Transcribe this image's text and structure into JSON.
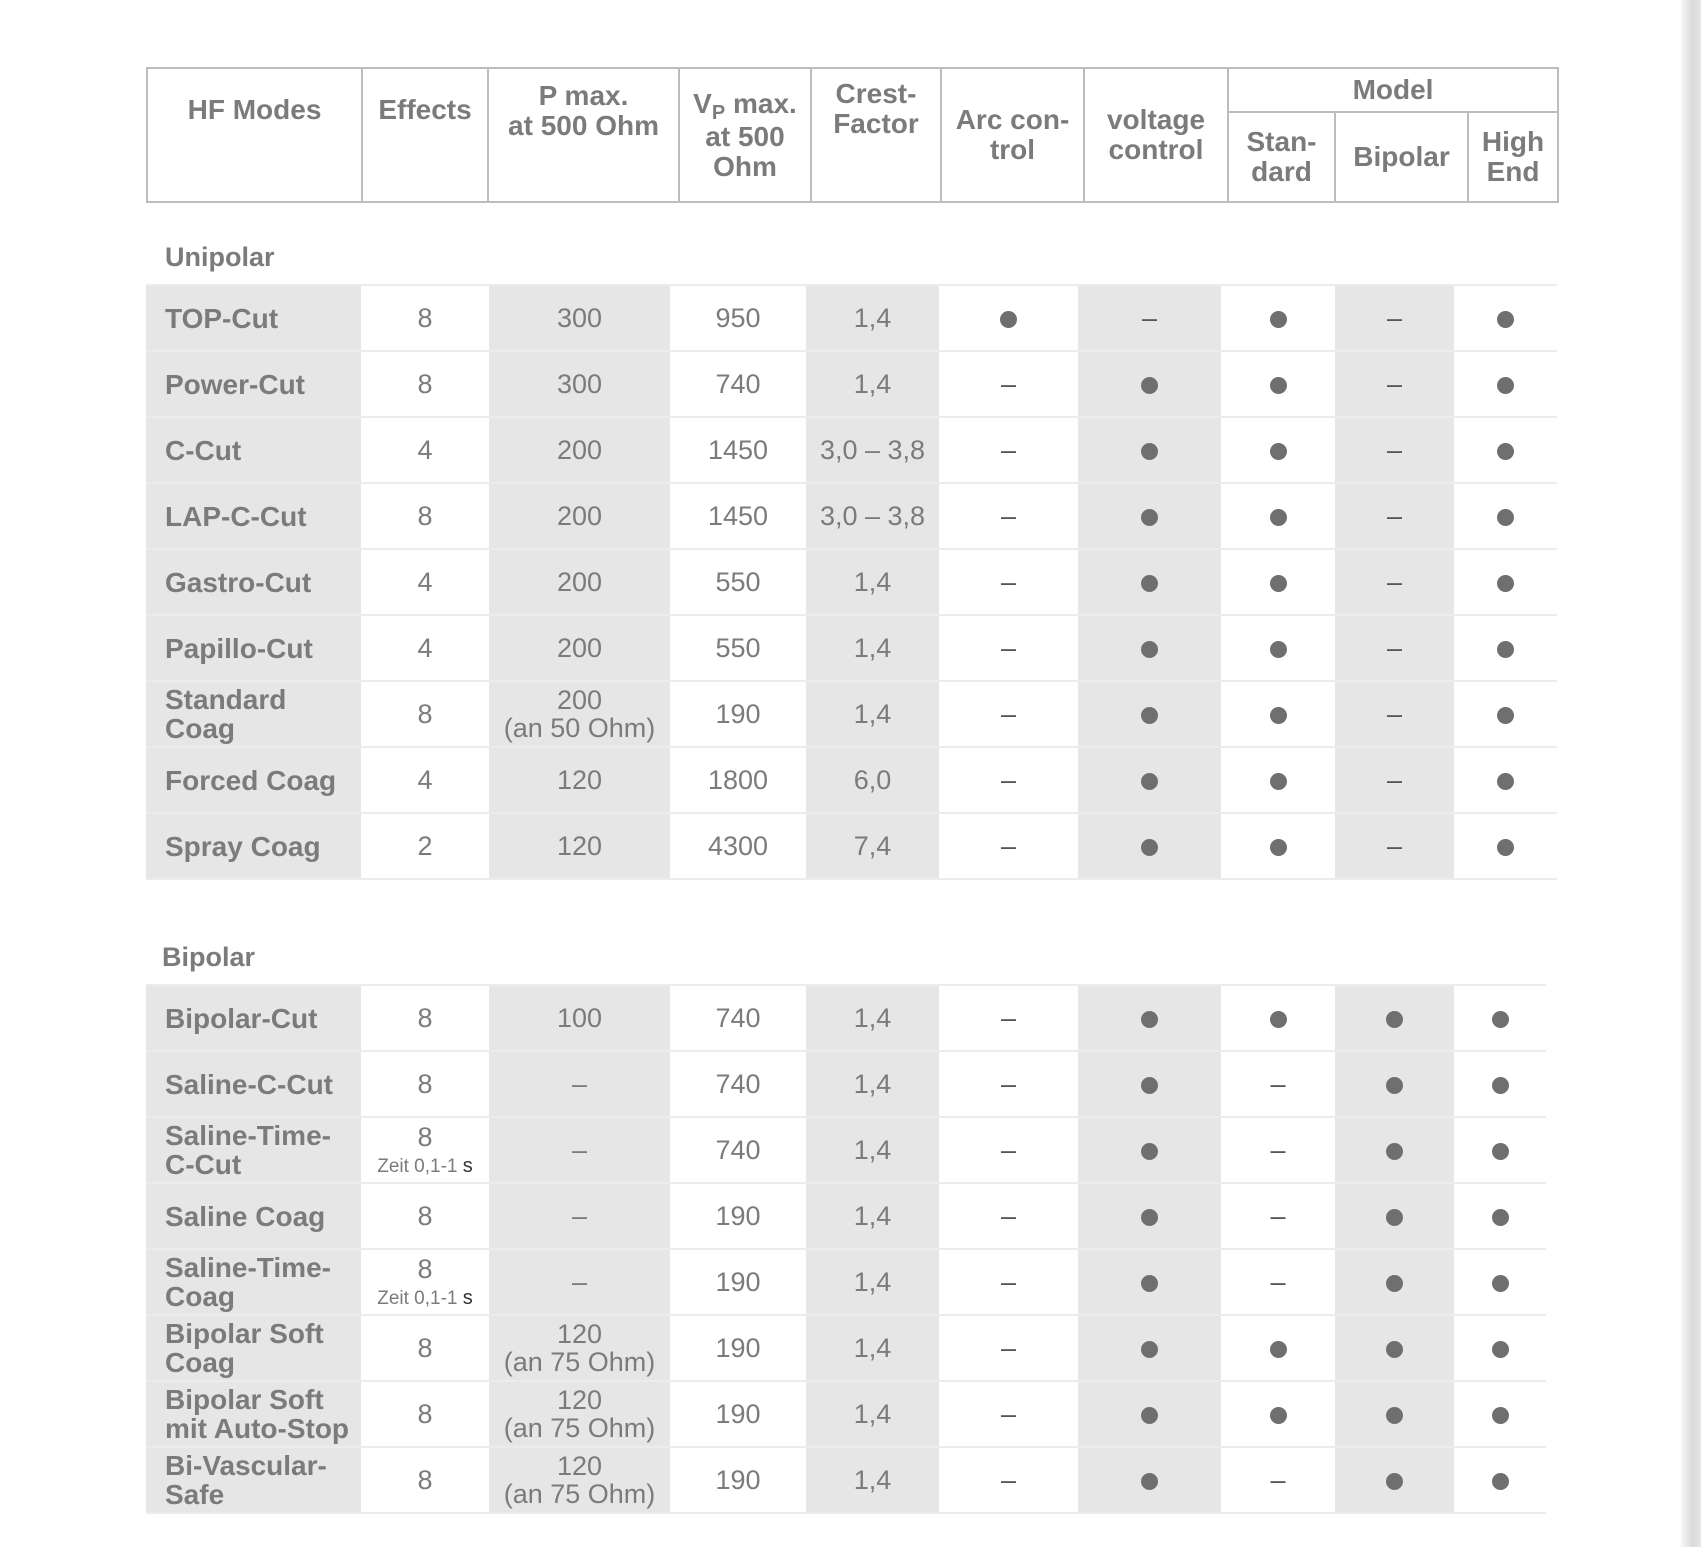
{
  "header": {
    "hf_modes": "HF Modes",
    "effects": "Effects",
    "p_max_l1": "P max.",
    "p_max_l2": "at 500 Ohm",
    "vp_v": "V",
    "vp_sub": "P",
    "vp_l1_rest": " max.",
    "vp_l2": "at 500",
    "vp_l3": "Ohm",
    "crest_l1": "Crest-",
    "crest_l2": "Factor",
    "arc_l1": "Arc con-",
    "arc_l2": "trol",
    "voltage_l1": "voltage",
    "voltage_l2": "control",
    "model": "Model",
    "standard_l1": "Stan-",
    "standard_l2": "dard",
    "bipolar": "Bipolar",
    "highend_l1": "High",
    "highend_l2": "End"
  },
  "sections": {
    "unipolar": {
      "title": "Unipolar",
      "rows": [
        {
          "l1": "TOP-Cut",
          "l2": "",
          "effects": "8",
          "note": "",
          "p1": "300",
          "p2": "",
          "vp": "950",
          "crest": "1,4",
          "arc": "dot",
          "voltage": "dash",
          "standard": "dot",
          "bipolar": "dash",
          "highend": "dot"
        },
        {
          "l1": "Power-Cut",
          "l2": "",
          "effects": "8",
          "note": "",
          "p1": "300",
          "p2": "",
          "vp": "740",
          "crest": "1,4",
          "arc": "dash",
          "voltage": "dot",
          "standard": "dot",
          "bipolar": "dash",
          "highend": "dot"
        },
        {
          "l1": "C-Cut",
          "l2": "",
          "effects": "4",
          "note": "",
          "p1": "200",
          "p2": "",
          "vp": "1450",
          "crest": "3,0 – 3,8",
          "arc": "dash",
          "voltage": "dot",
          "standard": "dot",
          "bipolar": "dash",
          "highend": "dot"
        },
        {
          "l1": "LAP-C-Cut",
          "l2": "",
          "effects": "8",
          "note": "",
          "p1": "200",
          "p2": "",
          "vp": "1450",
          "crest": "3,0 – 3,8",
          "arc": "dash",
          "voltage": "dot",
          "standard": "dot",
          "bipolar": "dash",
          "highend": "dot"
        },
        {
          "l1": "Gastro-Cut",
          "l2": "",
          "effects": "4",
          "note": "",
          "p1": "200",
          "p2": "",
          "vp": "550",
          "crest": "1,4",
          "arc": "dash",
          "voltage": "dot",
          "standard": "dot",
          "bipolar": "dash",
          "highend": "dot"
        },
        {
          "l1": "Papillo-Cut",
          "l2": "",
          "effects": "4",
          "note": "",
          "p1": "200",
          "p2": "",
          "vp": "550",
          "crest": "1,4",
          "arc": "dash",
          "voltage": "dot",
          "standard": "dot",
          "bipolar": "dash",
          "highend": "dot"
        },
        {
          "l1": "Standard",
          "l2": "Coag",
          "effects": "8",
          "note": "",
          "p1": "200",
          "p2": "(an 50 Ohm)",
          "vp": "190",
          "crest": "1,4",
          "arc": "dash",
          "voltage": "dot",
          "standard": "dot",
          "bipolar": "dash",
          "highend": "dot"
        },
        {
          "l1": "Forced Coag",
          "l2": "",
          "effects": "4",
          "note": "",
          "p1": "120",
          "p2": "",
          "vp": "1800",
          "crest": "6,0",
          "arc": "dash",
          "voltage": "dot",
          "standard": "dot",
          "bipolar": "dash",
          "highend": "dot"
        },
        {
          "l1": "Spray Coag",
          "l2": "",
          "effects": "2",
          "note": "",
          "p1": "120",
          "p2": "",
          "vp": "4300",
          "crest": "7,4",
          "arc": "dash",
          "voltage": "dot",
          "standard": "dot",
          "bipolar": "dash",
          "highend": "dot"
        }
      ]
    },
    "bipolar": {
      "title": "Bipolar",
      "rows": [
        {
          "l1": "Bipolar-Cut",
          "l2": "",
          "effects": "8",
          "note": "",
          "p1": "100",
          "p2": "",
          "vp": "740",
          "crest": "1,4",
          "arc": "dash",
          "voltage": "dot",
          "standard": "dot",
          "bipolar": "dot",
          "highend": "dot"
        },
        {
          "l1": "Saline-C-Cut",
          "l2": "",
          "effects": "8",
          "note": "",
          "p1": "–",
          "p2": "",
          "vp": "740",
          "crest": "1,4",
          "arc": "dash",
          "voltage": "dot",
          "standard": "dash",
          "bipolar": "dot",
          "highend": "dot"
        },
        {
          "l1": "Saline-Time-",
          "l2": "C-Cut",
          "effects": "8",
          "note": "Zeit 0,1-1",
          "p1": "–",
          "p2": "",
          "vp": "740",
          "crest": "1,4",
          "arc": "dash",
          "voltage": "dot",
          "standard": "dash",
          "bipolar": "dot",
          "highend": "dot"
        },
        {
          "l1": "Saline Coag",
          "l2": "",
          "effects": "8",
          "note": "",
          "p1": "–",
          "p2": "",
          "vp": "190",
          "crest": "1,4",
          "arc": "dash",
          "voltage": "dot",
          "standard": "dash",
          "bipolar": "dot",
          "highend": "dot"
        },
        {
          "l1": "Saline-Time-",
          "l2": "Coag",
          "effects": "8",
          "note": "Zeit 0,1-1",
          "p1": "–",
          "p2": "",
          "vp": "190",
          "crest": "1,4",
          "arc": "dash",
          "voltage": "dot",
          "standard": "dash",
          "bipolar": "dot",
          "highend": "dot"
        },
        {
          "l1": "Bipolar Soft",
          "l2": "Coag",
          "effects": "8",
          "note": "",
          "p1": "120",
          "p2": "(an 75 Ohm)",
          "vp": "190",
          "crest": "1,4",
          "arc": "dash",
          "voltage": "dot",
          "standard": "dot",
          "bipolar": "dot",
          "highend": "dot"
        },
        {
          "l1": "Bipolar Soft",
          "l2": "mit Auto-Stop",
          "effects": "8",
          "note": "",
          "p1": "120",
          "p2": "(an 75 Ohm)",
          "vp": "190",
          "crest": "1,4",
          "arc": "dash",
          "voltage": "dot",
          "standard": "dot",
          "bipolar": "dot",
          "highend": "dot"
        },
        {
          "l1": "Bi-Vascular-",
          "l2": "Safe",
          "effects": "8",
          "note": "",
          "p1": "120",
          "p2": "(an 75 Ohm)",
          "vp": "190",
          "crest": "1,4",
          "arc": "dash",
          "voltage": "dot",
          "standard": "dash",
          "bipolar": "dot",
          "highend": "dot"
        }
      ]
    }
  },
  "symbols": {
    "dash": "–",
    "unit_s": "s"
  }
}
